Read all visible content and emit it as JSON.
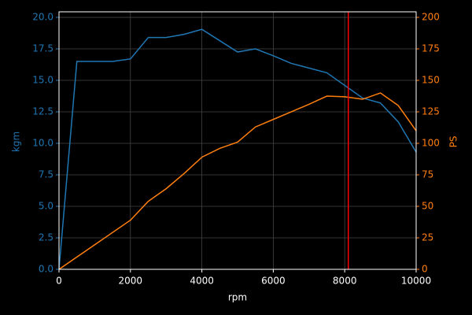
{
  "chart_data": {
    "type": "line",
    "x_label": "rpm",
    "y_label": "kgm",
    "y2_label": "PS",
    "xlim": [
      0,
      10000
    ],
    "xticks": [
      0,
      2000,
      4000,
      6000,
      8000,
      10000
    ],
    "ylim": [
      0,
      20.44
    ],
    "yticks": [
      {
        "value": 0,
        "label": "0.0"
      },
      {
        "value": 2.5,
        "label": "2.5"
      },
      {
        "value": 5,
        "label": "5.0"
      },
      {
        "value": 7.5,
        "label": "7.5"
      },
      {
        "value": 10,
        "label": "10.0"
      },
      {
        "value": 12.5,
        "label": "12.5"
      },
      {
        "value": 15,
        "label": "15.0"
      },
      {
        "value": 17.5,
        "label": "17.5"
      },
      {
        "value": 20,
        "label": "20.0"
      }
    ],
    "y2lim": [
      0,
      204.4
    ],
    "y2ticks": [
      0,
      25,
      50,
      75,
      100,
      125,
      150,
      175,
      200
    ],
    "grid": true,
    "series": [
      {
        "color": "#1f77b4",
        "axis": "y",
        "x": [
          0,
          500,
          1500,
          2000,
          2500,
          3000,
          3500,
          4000,
          5000,
          5500,
          6000,
          6500,
          7500,
          8500,
          9000,
          9500,
          10000
        ],
        "values": [
          0,
          16.5,
          16.5,
          16.7,
          18.4,
          18.4,
          18.65,
          19.05,
          17.25,
          17.5,
          16.95,
          16.35,
          15.6,
          13.6,
          13.2,
          11.7,
          9.3
        ]
      },
      {
        "color": "#ff7f0e",
        "axis": "y2",
        "x": [
          0,
          2000,
          2500,
          3000,
          3500,
          4000,
          4500,
          5000,
          5500,
          6000,
          6500,
          7000,
          7500,
          8000,
          8500,
          9000,
          9500,
          10000
        ],
        "values": [
          0,
          39,
          54,
          64,
          76,
          89,
          96,
          101,
          113,
          119,
          125,
          131,
          137.5,
          137,
          135,
          140,
          130,
          110
        ]
      }
    ],
    "vline": {
      "x": 8100,
      "color": "#ff0000"
    }
  }
}
